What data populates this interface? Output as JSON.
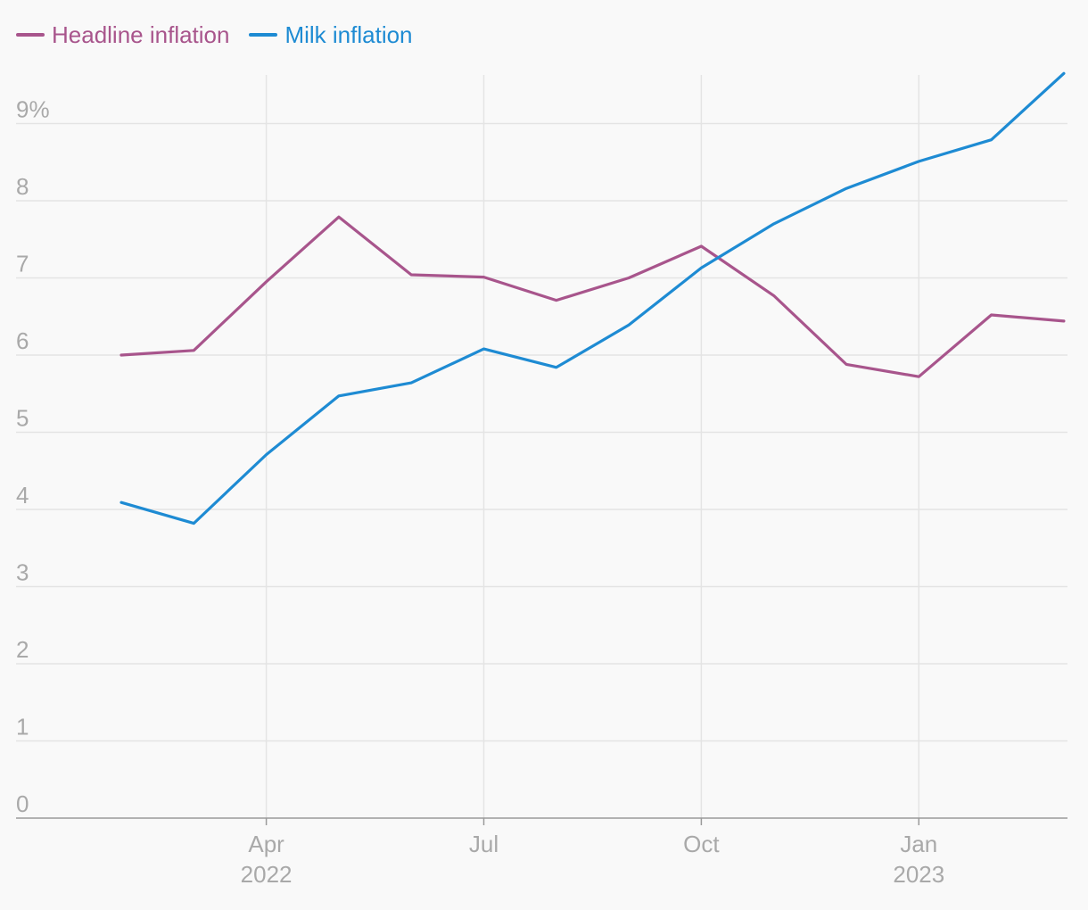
{
  "chart_data": {
    "type": "line",
    "title": "",
    "xlabel": "",
    "ylabel": "",
    "x": [
      "2022-02",
      "2022-03",
      "2022-04",
      "2022-05",
      "2022-06",
      "2022-07",
      "2022-08",
      "2022-09",
      "2022-10",
      "2022-11",
      "2022-12",
      "2023-01",
      "2023-02",
      "2023-03"
    ],
    "series": [
      {
        "name": "Headline inflation",
        "color": "#a8558c",
        "values": [
          6.0,
          6.06,
          6.95,
          7.79,
          7.04,
          7.01,
          6.71,
          7.0,
          7.41,
          6.77,
          5.88,
          5.72,
          6.52,
          6.44
        ]
      },
      {
        "name": "Milk inflation",
        "color": "#1e8bd3",
        "values": [
          4.09,
          3.82,
          4.71,
          5.47,
          5.64,
          6.08,
          5.84,
          6.39,
          7.13,
          7.7,
          8.16,
          8.51,
          8.79,
          9.65
        ]
      }
    ],
    "ylim": [
      0,
      9.6
    ],
    "y_ticks": [
      {
        "value": 0,
        "label": "0"
      },
      {
        "value": 1,
        "label": "1"
      },
      {
        "value": 2,
        "label": "2"
      },
      {
        "value": 3,
        "label": "3"
      },
      {
        "value": 4,
        "label": "4"
      },
      {
        "value": 5,
        "label": "5"
      },
      {
        "value": 6,
        "label": "6"
      },
      {
        "value": 7,
        "label": "7"
      },
      {
        "value": 8,
        "label": "8"
      },
      {
        "value": 9,
        "label": "9%"
      }
    ],
    "x_ticks": [
      {
        "at": "2022-04",
        "label": "Apr",
        "sublabel": "2022"
      },
      {
        "at": "2022-07",
        "label": "Jul",
        "sublabel": ""
      },
      {
        "at": "2022-10",
        "label": "Oct",
        "sublabel": ""
      },
      {
        "at": "2023-01",
        "label": "Jan",
        "sublabel": "2023"
      }
    ],
    "legend": "top-left",
    "grid": true
  },
  "colors": {
    "background": "#f9f9f9",
    "grid": "#e4e4e4",
    "axis": "#9a9a9a",
    "tick_text": "#a9a9a9"
  }
}
